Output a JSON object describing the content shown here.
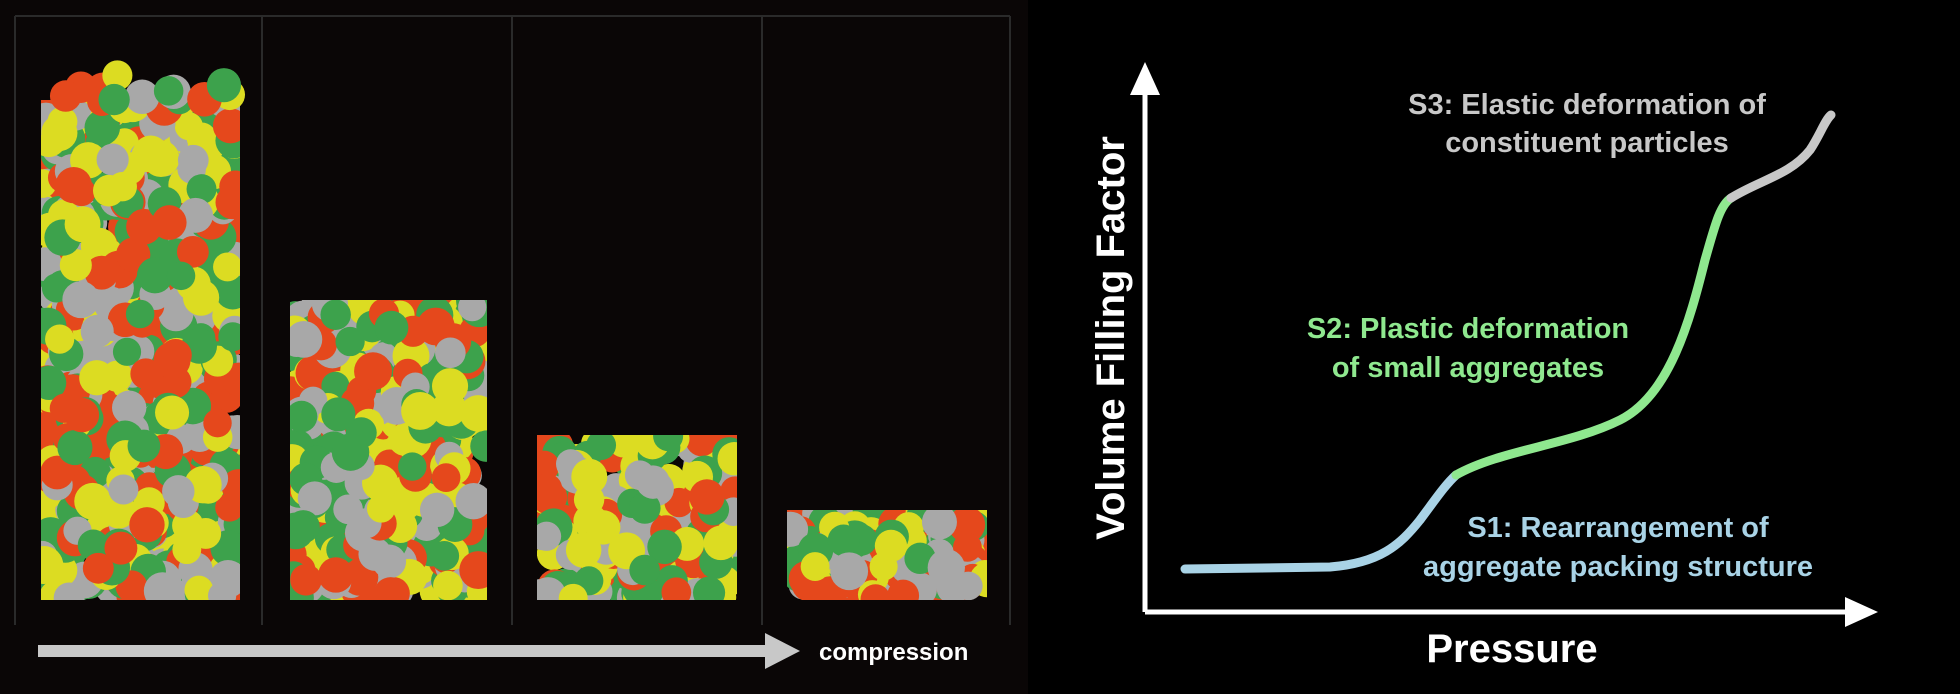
{
  "compression_label": "compression",
  "axes": {
    "x_label": "Pressure",
    "y_label": "Volume Filling Factor"
  },
  "stages": [
    {
      "lines": [
        "S1: Rearrangement of",
        "aggregate packing structure"
      ]
    },
    {
      "lines": [
        "S2: Plastic deformation",
        "of small aggregates"
      ]
    },
    {
      "lines": [
        "S3: Elastic deformation of",
        "constituent particles"
      ]
    }
  ]
}
